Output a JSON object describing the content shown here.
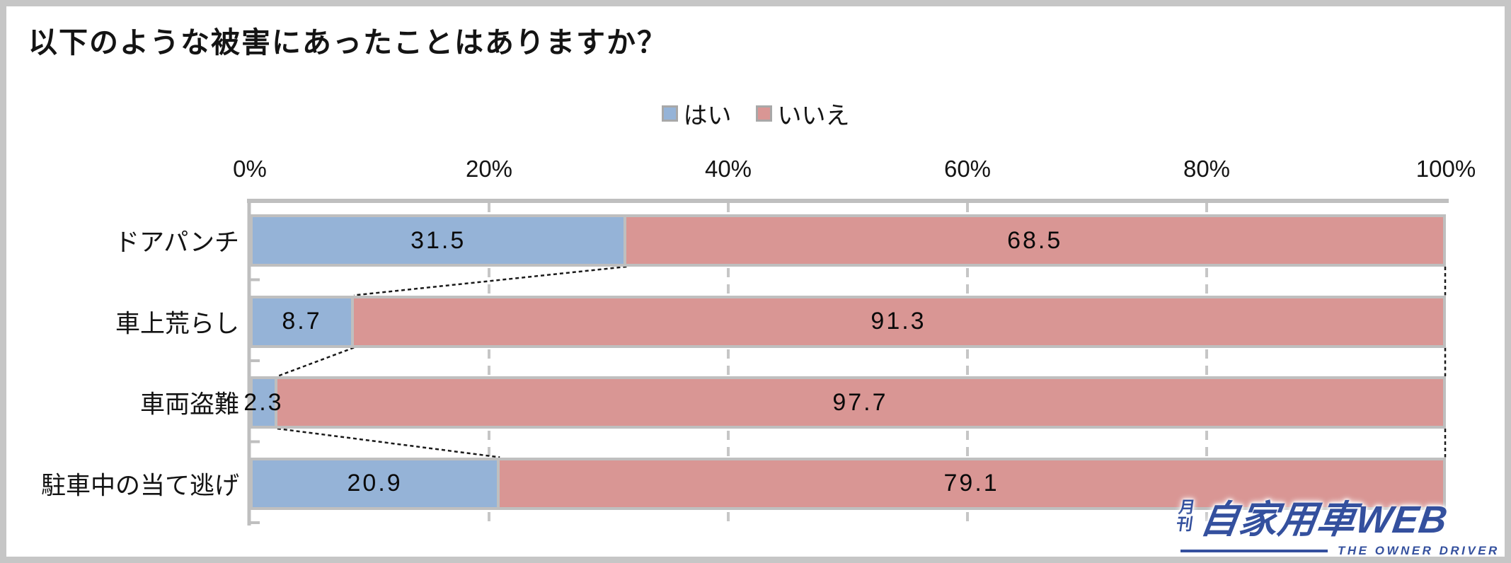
{
  "title": "以下のような被害にあったことはありますか？",
  "chart_data": {
    "type": "bar",
    "stacked": true,
    "orientation": "horizontal",
    "title": "以下のような被害にあったことはありますか？",
    "categories": [
      "ドアパンチ",
      "車上荒らし",
      "車両盗難",
      "駐車中の当て逃げ"
    ],
    "series": [
      {
        "name": "はい",
        "color": "#95B3D7",
        "values": [
          31.5,
          8.7,
          2.3,
          20.9
        ]
      },
      {
        "name": "いいえ",
        "color": "#D99694",
        "values": [
          68.5,
          91.3,
          97.7,
          79.1
        ]
      }
    ],
    "x_ticks": [
      0,
      20,
      40,
      60,
      80,
      100
    ],
    "x_tick_labels": [
      "0%",
      "20%",
      "40%",
      "60%",
      "80%",
      "100%"
    ],
    "xlim": [
      0,
      100
    ],
    "value_suffix": "%",
    "legend_position": "top-center",
    "grid": "vertical-dashed",
    "series_connector_lines": true
  },
  "legend": {
    "items": [
      {
        "label": "はい",
        "color": "#95B3D7"
      },
      {
        "label": "いいえ",
        "color": "#D99694"
      }
    ]
  },
  "logo": {
    "top_small": "月刊",
    "main": "自家用車WEB",
    "subtitle": "THE OWNER DRIVER",
    "color": "#34509E"
  },
  "style": {
    "bar_border": "#BFBFBF",
    "axis_color": "#BFBFBF",
    "gridline_color": "#C6C6C6",
    "connector_color": "#1A1A1A",
    "frame_color": "#C6C6C6"
  }
}
